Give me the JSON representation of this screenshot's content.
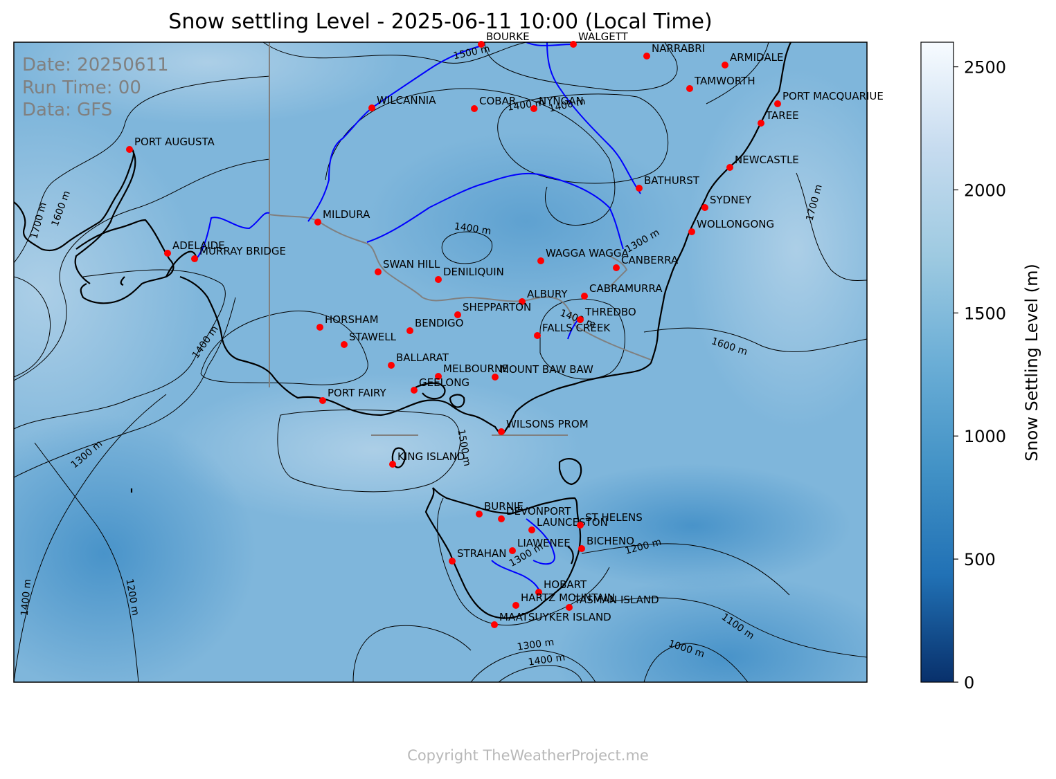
{
  "title": "Snow settling Level - 2025-06-11 10:00 (Local Time)",
  "info": {
    "date": "Date: 20250611",
    "run_time": "Run Time: 00",
    "data_source": "Data: GFS"
  },
  "colorbar": {
    "label": "Snow Settling Level (m)",
    "min": 0,
    "max": 2600,
    "ticks": [
      "0",
      "500",
      "1000",
      "1500",
      "2000",
      "2500"
    ],
    "colors": [
      "#08306b",
      "#2171b5",
      "#4292c6",
      "#6baed6",
      "#9ecae1",
      "#c6dbef",
      "#f7fbff"
    ]
  },
  "copyright": "Copyright TheWeatherProject.me",
  "colors": {
    "coast": "#000000",
    "river": "#0000ff",
    "border": "#808080",
    "city_marker": "#ff0000",
    "contour": "#000000"
  },
  "cities": [
    "BOURKE",
    "WALGETT",
    "NARRABRI",
    "ARMIDALE",
    "TAMWORTH",
    "PORT MACQUARIUE",
    "TAREE",
    "WILCANNIA",
    "COBAR",
    "NYNGAN",
    "PORT AUGUSTA",
    "BATHURST",
    "NEWCASTLE",
    "SYDNEY",
    "WOLLONGONG",
    "MILDURA",
    "ADELAIDE",
    "MURRAY BRIDGE",
    "SWAN HILL",
    "DENILIQUIN",
    "WAGGA WAGGA",
    "CANBERRA",
    "CABRAMURRA",
    "ALBURY",
    "SHEPPARTON",
    "THREDBO",
    "HORSHAM",
    "BENDIGO",
    "FALLS CREEK",
    "STAWELL",
    "BALLARAT",
    "MELBOURNE",
    "MOUNT BAW BAW",
    "GEELONG",
    "PORT FAIRY",
    "WILSONS PROM",
    "KING ISLAND",
    "BURNIE",
    "DEVONPORT",
    "LAUNCESTON",
    "ST HELENS",
    "LIAWENEE",
    "BICHENO",
    "STRAHAN",
    "HOBART",
    "HARTZ MOUNTAIN",
    "TASMAN ISLAND",
    "MAATSUYKER ISLAND"
  ],
  "contour_labels": [
    "1500 m",
    "1400 m",
    "1400 m",
    "1300 m",
    "1700 m",
    "1600 m",
    "1700 m",
    "1400 m",
    "1600 m",
    "1500 m",
    "1300 m",
    "1400 m",
    "1200 m",
    "1300 m",
    "1400 m",
    "1200 m",
    "1100 m",
    "1000 m",
    "1300 m",
    "1400 m",
    "1400 m"
  ]
}
